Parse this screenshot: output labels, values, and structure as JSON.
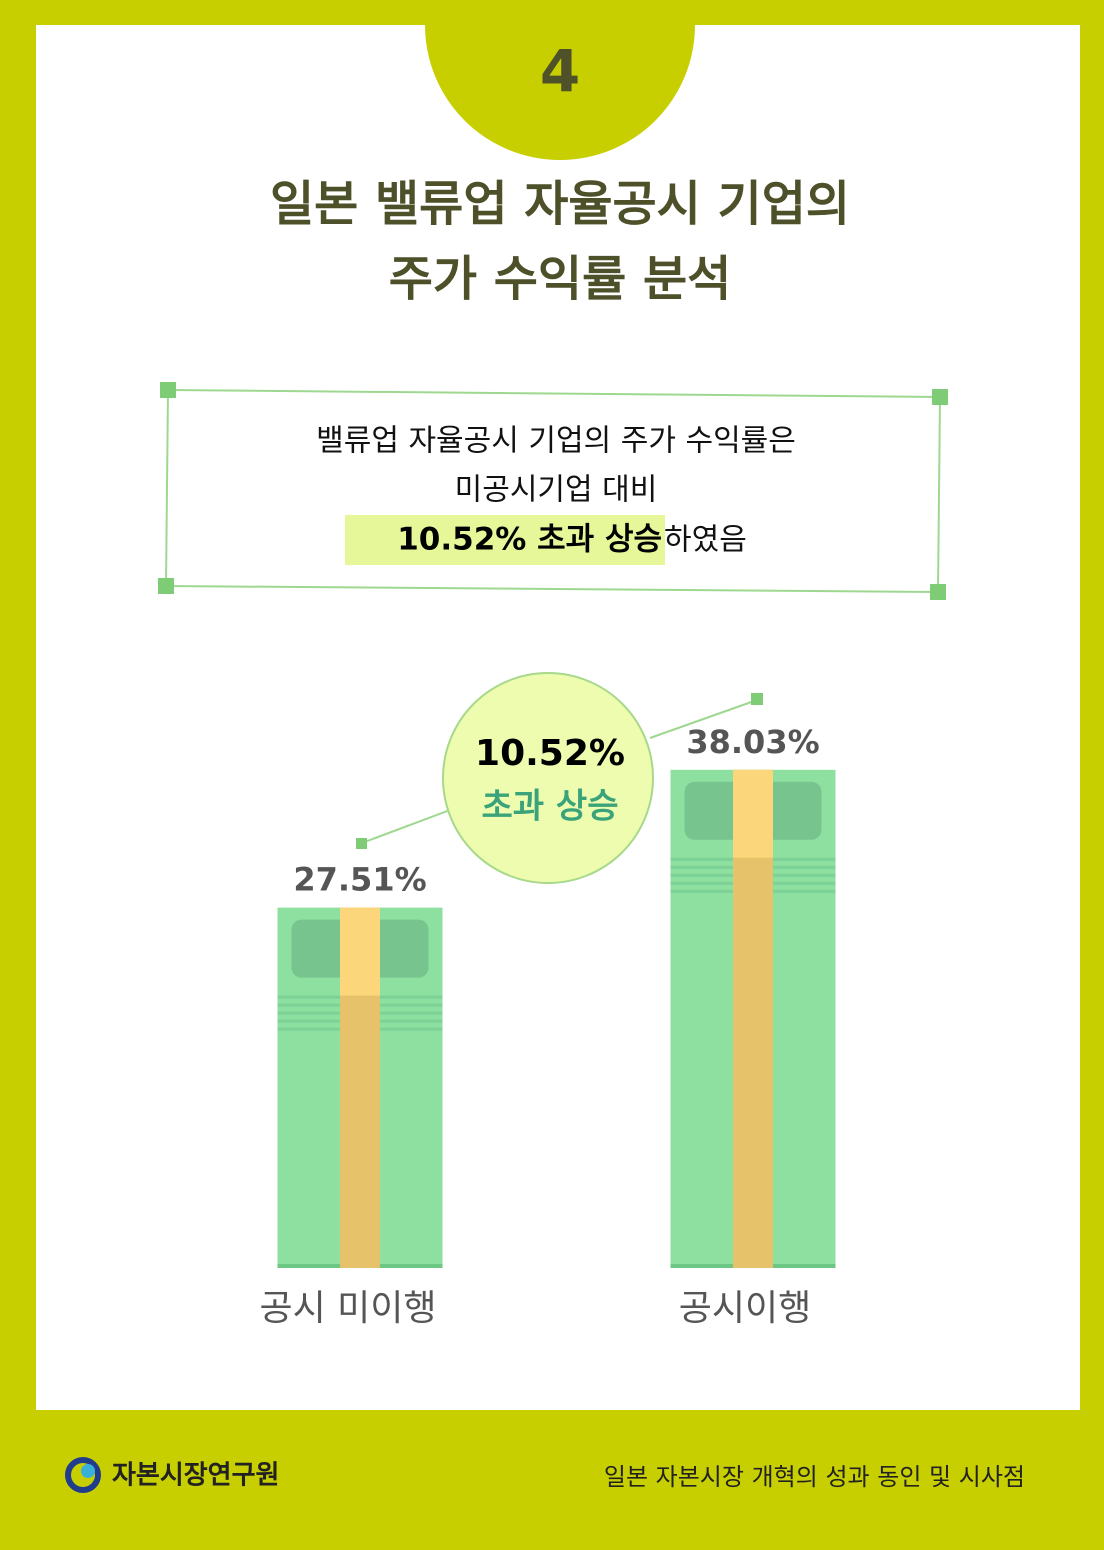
{
  "page_number": "4",
  "title": [
    "일본 밸류업 자율공시 기업의",
    "주가 수익률 분석"
  ],
  "summary": {
    "lines": [
      "밸류업 자율공시 기업의 주가 수익률은",
      "미공시기업 대비"
    ],
    "highlight": "10.52% 초과 상승",
    "tail": "하였음"
  },
  "chart_data": {
    "type": "bar",
    "categories": [
      "공시 미이행",
      "공시이행"
    ],
    "values": [
      27.51,
      38.03
    ],
    "value_labels": [
      "27.51%",
      "38.03%"
    ],
    "color": "#8ee0a0",
    "annotation": [
      "10.52%",
      "초과 상승"
    ]
  },
  "footer": {
    "organization": "자본시장연구원",
    "report": "일본 자본시장 개혁의 성과 동인 및 시사점"
  }
}
